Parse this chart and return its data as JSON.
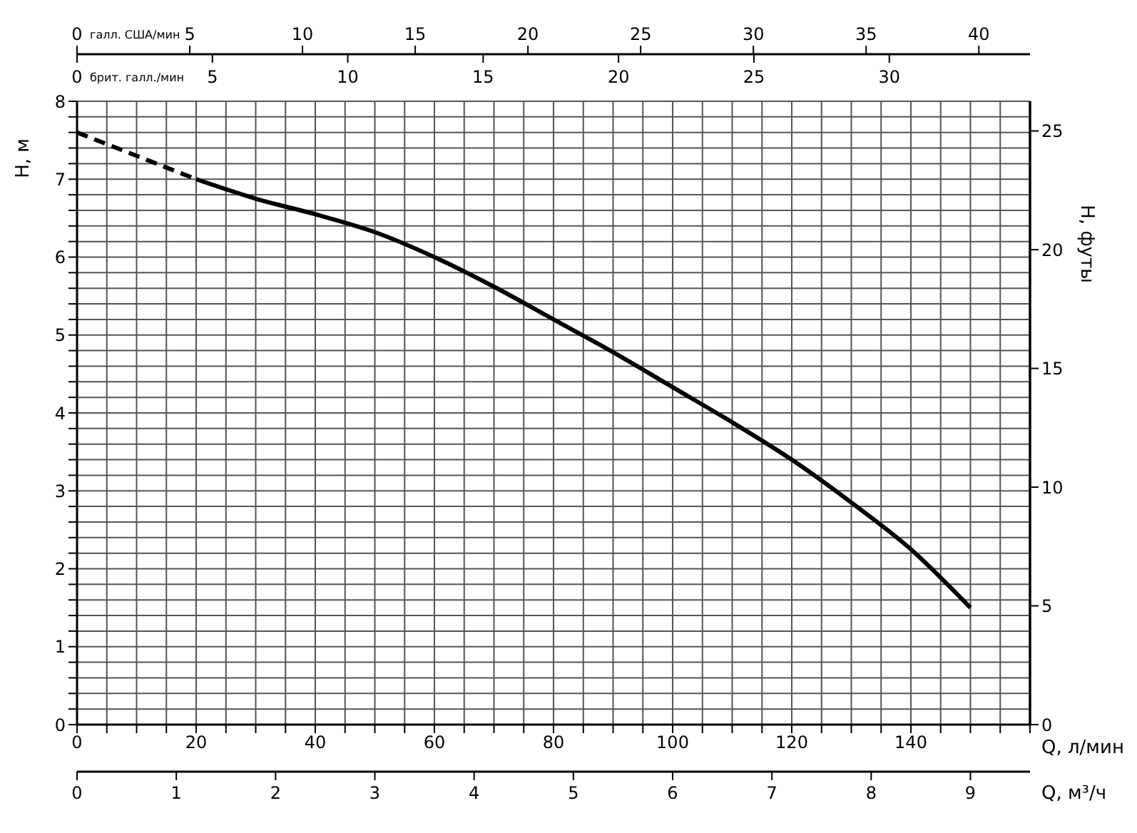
{
  "chart_data": {
    "type": "line",
    "xlabel": "Q, л/мин",
    "ylabel": "H, м",
    "y2label": "H, футы",
    "x2label": "галл. США/мин",
    "series": [
      {
        "color": "#000000",
        "line_style": "dashed",
        "x": [
          0,
          10,
          20
        ],
        "values": [
          7.6,
          7.3,
          7.0
        ]
      },
      {
        "color": "#000000",
        "line_style": "solid",
        "x": [
          20,
          30,
          40,
          50,
          60,
          70,
          80,
          90,
          100,
          110,
          120,
          130,
          140,
          150
        ],
        "values": [
          7.0,
          6.75,
          6.55,
          6.32,
          6.0,
          5.62,
          5.2,
          4.78,
          4.33,
          3.88,
          3.4,
          2.85,
          2.25,
          1.5
        ]
      }
    ],
    "annotations": [
      "брит. галл./мин",
      "0",
      "5",
      "10",
      "15",
      "20",
      "25",
      "30",
      "Q, м³/ч",
      "0",
      "1",
      "2",
      "3",
      "4",
      "5",
      "6",
      "7",
      "8",
      "9"
    ],
    "xlim": [
      0,
      160
    ],
    "xticks": [
      0,
      {
        "value": 5,
        "label": null
      },
      {
        "value": 10,
        "label": null
      },
      {
        "value": 15,
        "label": null
      },
      20,
      {
        "value": 25,
        "label": null
      },
      {
        "value": 30,
        "label": null
      },
      {
        "value": 35,
        "label": null
      },
      40,
      {
        "value": 45,
        "label": null
      },
      {
        "value": 50,
        "label": null
      },
      {
        "value": 55,
        "label": null
      },
      60,
      {
        "value": 65,
        "label": null
      },
      {
        "value": 70,
        "label": null
      },
      {
        "value": 75,
        "label": null
      },
      80,
      {
        "value": 85,
        "label": null
      },
      {
        "value": 90,
        "label": null
      },
      {
        "value": 95,
        "label": null
      },
      100,
      {
        "value": 105,
        "label": null
      },
      {
        "value": 110,
        "label": null
      },
      {
        "value": 115,
        "label": null
      },
      120,
      {
        "value": 125,
        "label": null
      },
      {
        "value": 130,
        "label": null
      },
      {
        "value": 135,
        "label": null
      },
      140,
      {
        "value": 145,
        "label": null
      },
      {
        "value": 150,
        "label": null
      },
      {
        "value": 155,
        "label": null
      },
      {
        "value": 160,
        "label": null
      }
    ],
    "ylim": [
      0,
      8
    ],
    "yticks": [
      0,
      {
        "value": 0.2,
        "label": null
      },
      {
        "value": 0.4,
        "label": null
      },
      {
        "value": 0.6,
        "label": null
      },
      {
        "value": 0.8,
        "label": null
      },
      1,
      {
        "value": 1.2,
        "label": null
      },
      {
        "value": 1.4,
        "label": null
      },
      {
        "value": 1.6,
        "label": null
      },
      {
        "value": 1.8,
        "label": null
      },
      2,
      {
        "value": 2.2,
        "label": null
      },
      {
        "value": 2.4,
        "label": null
      },
      {
        "value": 2.6,
        "label": null
      },
      {
        "value": 2.8,
        "label": null
      },
      3,
      {
        "value": 3.2,
        "label": null
      },
      {
        "value": 3.4,
        "label": null
      },
      {
        "value": 3.6,
        "label": null
      },
      {
        "value": 3.8,
        "label": null
      },
      4,
      {
        "value": 4.2,
        "label": null
      },
      {
        "value": 4.4,
        "label": null
      },
      {
        "value": 4.6,
        "label": null
      },
      {
        "value": 4.8,
        "label": null
      },
      5,
      {
        "value": 5.2,
        "label": null
      },
      {
        "value": 5.4,
        "label": null
      },
      {
        "value": 5.6,
        "label": null
      },
      {
        "value": 5.8,
        "label": null
      },
      6,
      {
        "value": 6.2,
        "label": null
      },
      {
        "value": 6.4,
        "label": null
      },
      {
        "value": 6.6,
        "label": null
      },
      {
        "value": 6.8,
        "label": null
      },
      7,
      {
        "value": 7.2,
        "label": null
      },
      {
        "value": 7.4,
        "label": null
      },
      {
        "value": 7.6,
        "label": null
      },
      {
        "value": 7.8,
        "label": null
      },
      8
    ],
    "y2lim": [
      0,
      26.25
    ],
    "y2ticks": [
      0,
      5,
      10,
      15,
      20,
      25
    ],
    "x2lim": [
      0,
      42.27
    ],
    "x2ticks": [
      0,
      5,
      10,
      15,
      20,
      25,
      30,
      35,
      40
    ],
    "grid": true,
    "marker": "none"
  }
}
